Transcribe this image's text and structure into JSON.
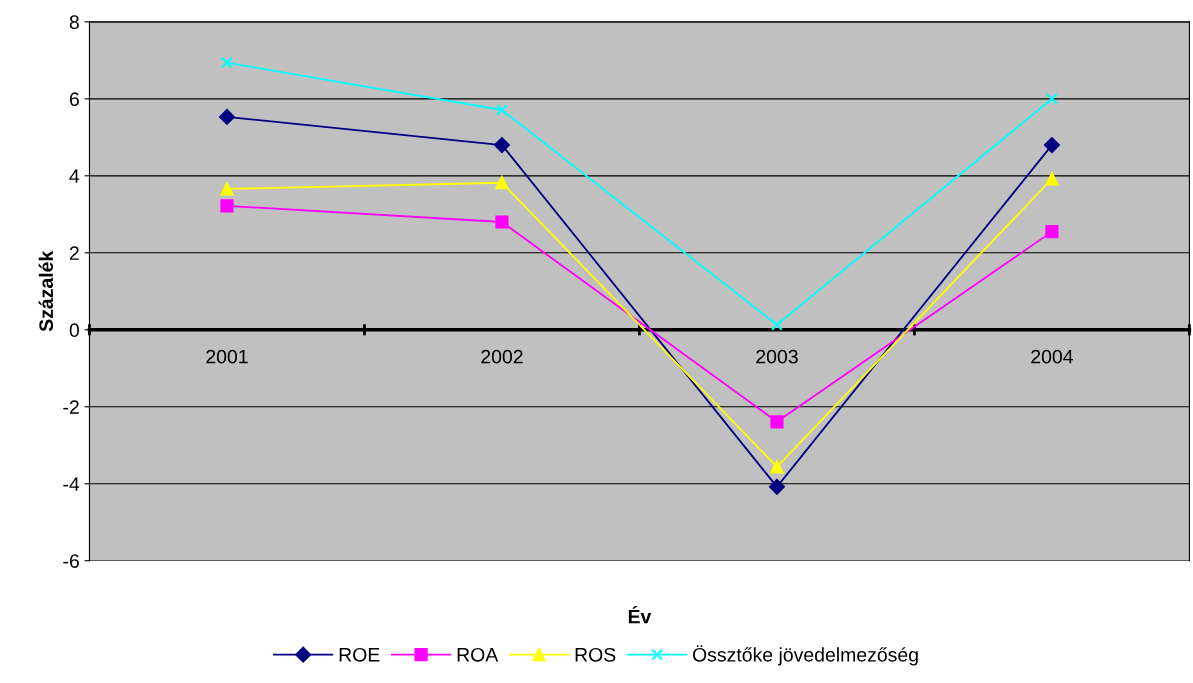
{
  "chart_data": {
    "type": "line",
    "xlabel": "Év",
    "ylabel": "Százalék",
    "categories": [
      "2001",
      "2002",
      "2003",
      "2004"
    ],
    "series": [
      {
        "name": "ROE",
        "color": "#000080",
        "marker": "diamond",
        "values": [
          5.53,
          4.8,
          -4.08,
          4.8
        ]
      },
      {
        "name": "ROA",
        "color": "#ff00ff",
        "marker": "square",
        "values": [
          3.22,
          2.8,
          -2.39,
          2.55
        ]
      },
      {
        "name": "ROS",
        "color": "#ffff00",
        "marker": "triangle",
        "values": [
          3.66,
          3.82,
          -3.56,
          3.92
        ]
      },
      {
        "name": "Össztőke jövedelmezőség",
        "color": "#00ffff",
        "marker": "cross",
        "values": [
          6.94,
          5.71,
          0.13,
          6.0
        ]
      }
    ],
    "ylim": [
      -6,
      8
    ],
    "yticks": [
      -6,
      -4,
      -2,
      0,
      2,
      4,
      6,
      8
    ],
    "grid": "y",
    "legend": "bottom"
  }
}
